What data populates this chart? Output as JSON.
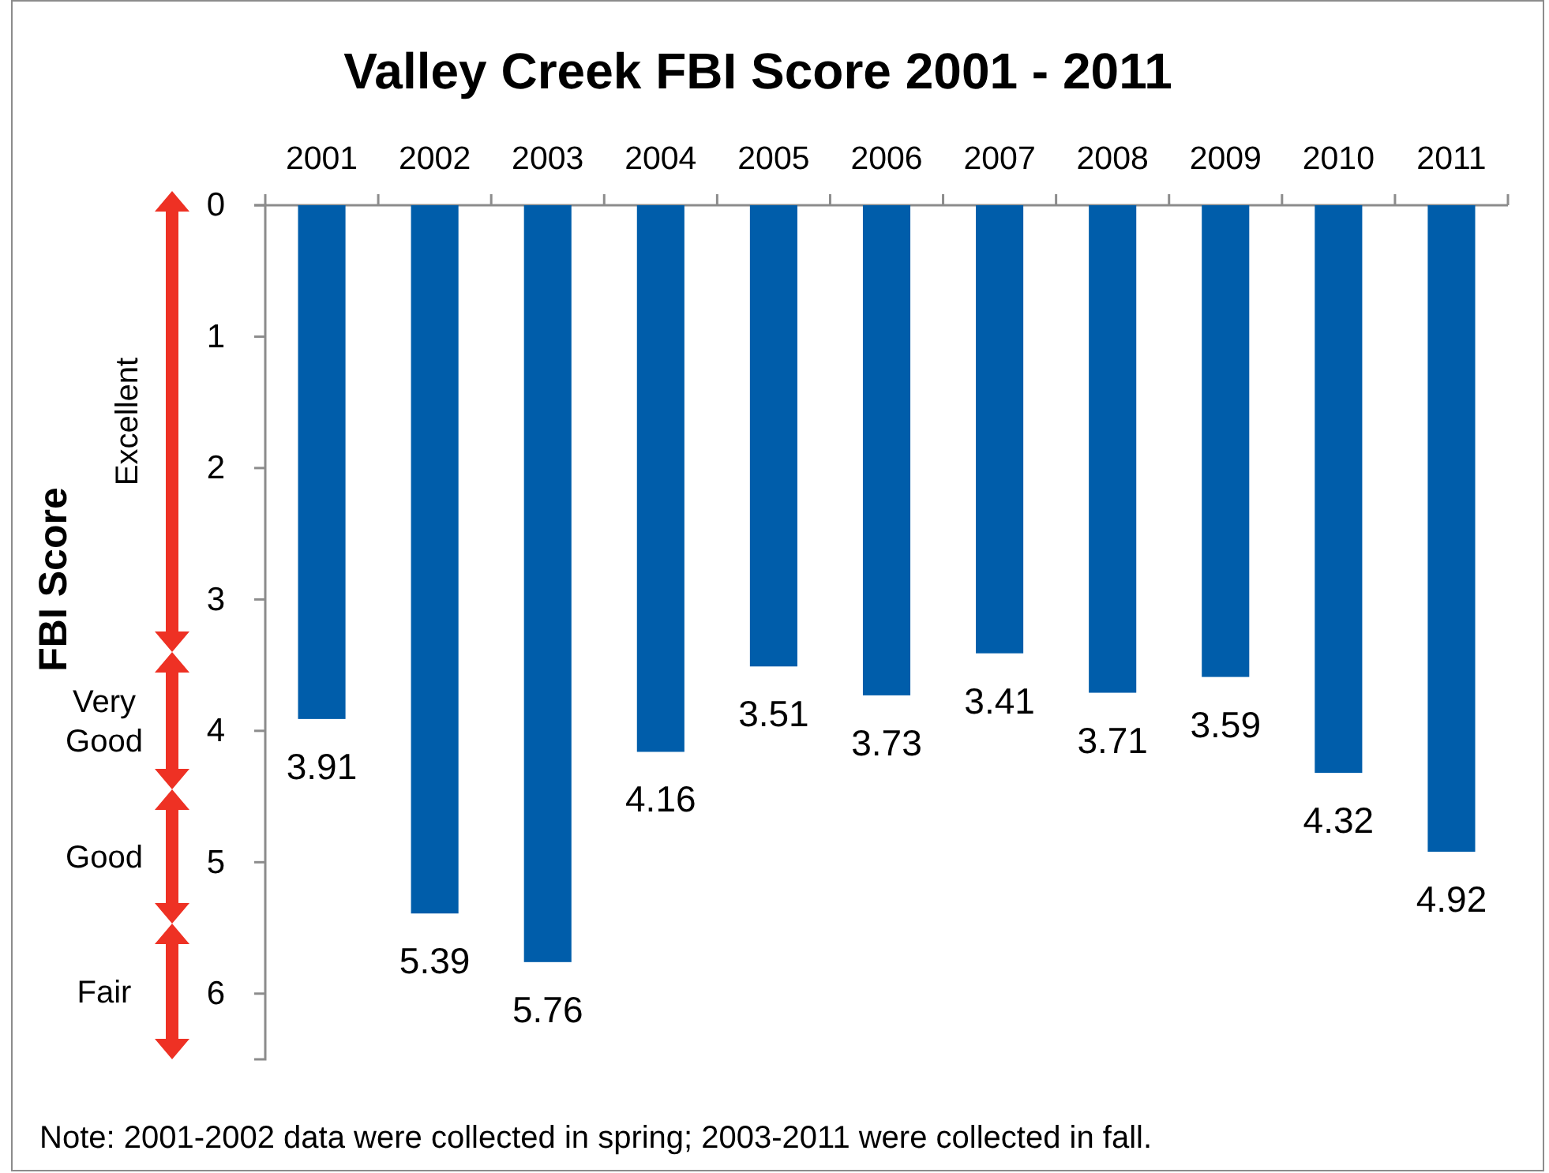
{
  "chart_data": {
    "type": "bar",
    "title": "Valley Creek FBI Score 2001 - 2011",
    "ylabel": "FBI Score",
    "categories": [
      "2001",
      "2002",
      "2003",
      "2004",
      "2005",
      "2006",
      "2007",
      "2008",
      "2009",
      "2010",
      "2011"
    ],
    "values": [
      3.91,
      5.39,
      5.76,
      4.16,
      3.51,
      3.73,
      3.41,
      3.71,
      3.59,
      4.32,
      4.92
    ],
    "color": "#005daa",
    "ylim": [
      6.5,
      0
    ],
    "yticks": [
      0,
      1,
      2,
      3,
      4,
      5,
      6
    ],
    "data_labels": true,
    "annotations": [
      "Excellent",
      "Very Good",
      "Good",
      "Fair",
      "Note: 2001-2002 data were collected in spring; 2003-2011 were collected in fall."
    ]
  }
}
